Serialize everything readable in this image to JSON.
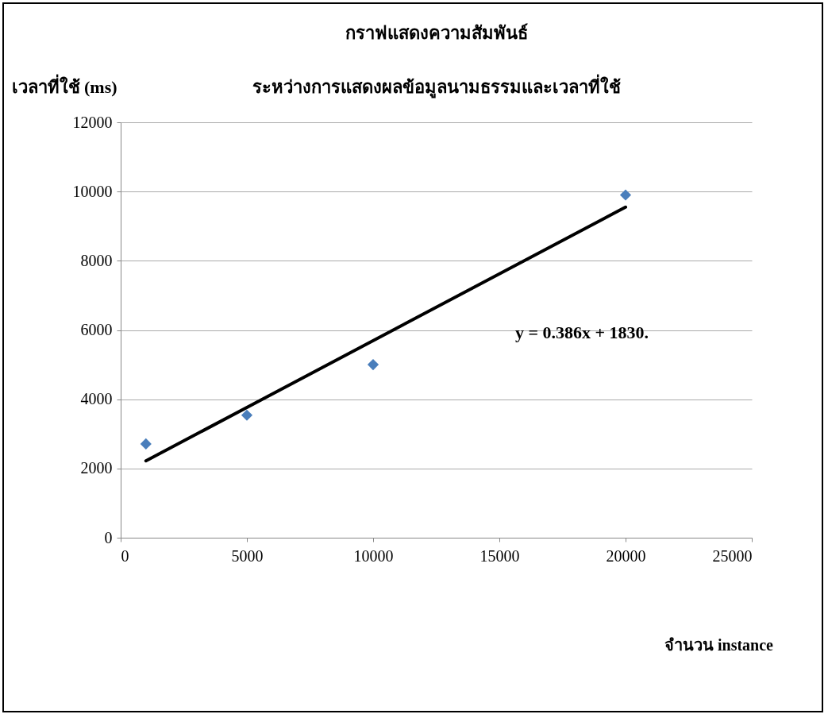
{
  "chart_data": {
    "type": "scatter",
    "title": "กราฟแสดงความสัมพันธ์",
    "subtitle": "ระหว่างการแสดงผลข้อมูลนามธรรมและเวลาที่ใช้",
    "xlabel": "จำนวน  instance",
    "ylabel": "เวลาที่ใช้ (ms)",
    "x": [
      1000,
      5000,
      10000,
      20000
    ],
    "series": [
      {
        "color": "#4a7ebb",
        "marker": "diamond",
        "values": [
          2710,
          3540,
          5000,
          9900
        ]
      },
      {
        "type": "line",
        "color": "#000000",
        "x": [
          1000,
          20000
        ],
        "values": [
          2220,
          9550
        ]
      }
    ],
    "annotations": [
      "y = 0.386x  + 1830."
    ],
    "xlim": [
      0,
      25000
    ],
    "xticks": [
      0,
      5000,
      10000,
      15000,
      20000,
      25000
    ],
    "ylim": [
      0,
      12000
    ],
    "yticks": [
      0,
      2000,
      4000,
      6000,
      8000,
      10000,
      12000
    ],
    "grid": "y"
  }
}
